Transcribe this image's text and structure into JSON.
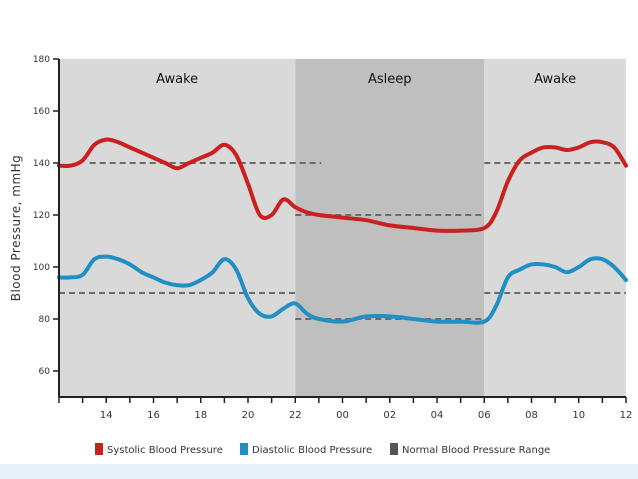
{
  "chart_data": {
    "type": "line",
    "title": "",
    "ylabel": "Blood Pressure, mmHg",
    "xlabel": "",
    "ylim": [
      50,
      180
    ],
    "yticks": [
      60,
      80,
      100,
      120,
      140,
      160,
      180
    ],
    "x_ticks": [
      {
        "pos": 0,
        "label": ""
      },
      {
        "pos": 1,
        "label": ""
      },
      {
        "pos": 2,
        "label": "14"
      },
      {
        "pos": 3,
        "label": ""
      },
      {
        "pos": 4,
        "label": "16"
      },
      {
        "pos": 5,
        "label": ""
      },
      {
        "pos": 6,
        "label": "18"
      },
      {
        "pos": 7,
        "label": ""
      },
      {
        "pos": 8,
        "label": "20"
      },
      {
        "pos": 9,
        "label": ""
      },
      {
        "pos": 10,
        "label": "22"
      },
      {
        "pos": 11,
        "label": ""
      },
      {
        "pos": 12,
        "label": "00"
      },
      {
        "pos": 13,
        "label": ""
      },
      {
        "pos": 14,
        "label": "02"
      },
      {
        "pos": 15,
        "label": ""
      },
      {
        "pos": 16,
        "label": "04"
      },
      {
        "pos": 17,
        "label": ""
      },
      {
        "pos": 18,
        "label": "06"
      },
      {
        "pos": 19,
        "label": ""
      },
      {
        "pos": 20,
        "label": "08"
      },
      {
        "pos": 21,
        "label": ""
      },
      {
        "pos": 22,
        "label": "10"
      },
      {
        "pos": 23,
        "label": ""
      },
      {
        "pos": 24,
        "label": "12"
      }
    ],
    "x_range": [
      0,
      24
    ],
    "periods": [
      {
        "label": "Awake",
        "start": 0,
        "end": 10,
        "color": "#d9d9d9"
      },
      {
        "label": "Asleep",
        "start": 10,
        "end": 18,
        "color": "#bfbfbf"
      },
      {
        "label": "Awake",
        "start": 18,
        "end": 24,
        "color": "#d9d9d9"
      }
    ],
    "normal_range_segments": [
      {
        "x": [
          1.3,
          11.1
        ],
        "y": 140
      },
      {
        "x": [
          10,
          18
        ],
        "y": 120
      },
      {
        "x": [
          18,
          24
        ],
        "y": 140
      },
      {
        "x": [
          0,
          10
        ],
        "y": 90
      },
      {
        "x": [
          10,
          18
        ],
        "y": 80
      },
      {
        "x": [
          18,
          24
        ],
        "y": 90
      }
    ],
    "series": [
      {
        "name": "Systolic Blood Pressure",
        "color": "#cc1f1f",
        "x": [
          0,
          0.5,
          1,
          1.5,
          2,
          2.5,
          3,
          3.5,
          4,
          4.5,
          5,
          5.5,
          6,
          6.5,
          7,
          7.5,
          8,
          8.5,
          9,
          9.5,
          10,
          10.5,
          11,
          12,
          13,
          14,
          15,
          16,
          17,
          18,
          18.5,
          19,
          19.5,
          20,
          20.5,
          21,
          21.5,
          22,
          22.5,
          23,
          23.5,
          24
        ],
        "y": [
          139,
          139,
          141,
          147,
          149,
          148,
          146,
          144,
          142,
          140,
          138,
          140,
          142,
          144,
          147,
          143,
          132,
          120,
          120,
          126,
          123,
          121,
          120,
          119,
          118,
          116,
          115,
          114,
          114,
          115,
          121,
          133,
          141,
          144,
          146,
          146,
          145,
          146,
          148,
          148,
          146,
          139
        ]
      },
      {
        "name": "Diastolic Blood Pressure",
        "color": "#1f8fc4",
        "x": [
          0,
          0.5,
          1,
          1.5,
          2,
          2.5,
          3,
          3.5,
          4,
          4.5,
          5,
          5.5,
          6,
          6.5,
          7,
          7.5,
          8,
          8.5,
          9,
          9.5,
          10,
          10.5,
          11,
          12,
          13,
          14,
          15,
          16,
          17,
          18,
          18.5,
          19,
          19.5,
          20,
          20.5,
          21,
          21.5,
          22,
          22.5,
          23,
          23.5,
          24
        ],
        "y": [
          96,
          96,
          97,
          103,
          104,
          103,
          101,
          98,
          96,
          94,
          93,
          93,
          95,
          98,
          103,
          99,
          88,
          82,
          81,
          84,
          86,
          82,
          80,
          79,
          81,
          81,
          80,
          79,
          79,
          79,
          85,
          96,
          99,
          101,
          101,
          100,
          98,
          100,
          103,
          103,
          100,
          95
        ]
      }
    ],
    "legend": {
      "placement": "bottom",
      "items": [
        {
          "label": "Systolic Blood Pressure",
          "color": "#cc1f1f"
        },
        {
          "label": "Diastolic Blood Pressure",
          "color": "#1f8fc4"
        },
        {
          "label": "Normal Blood Pressure Range",
          "color": "#555555"
        }
      ]
    },
    "grid": false,
    "background_color": "#ffffff",
    "bottom_band_color": "#e6f1f8",
    "normal_range_line_color": "#6b6b6b"
  }
}
